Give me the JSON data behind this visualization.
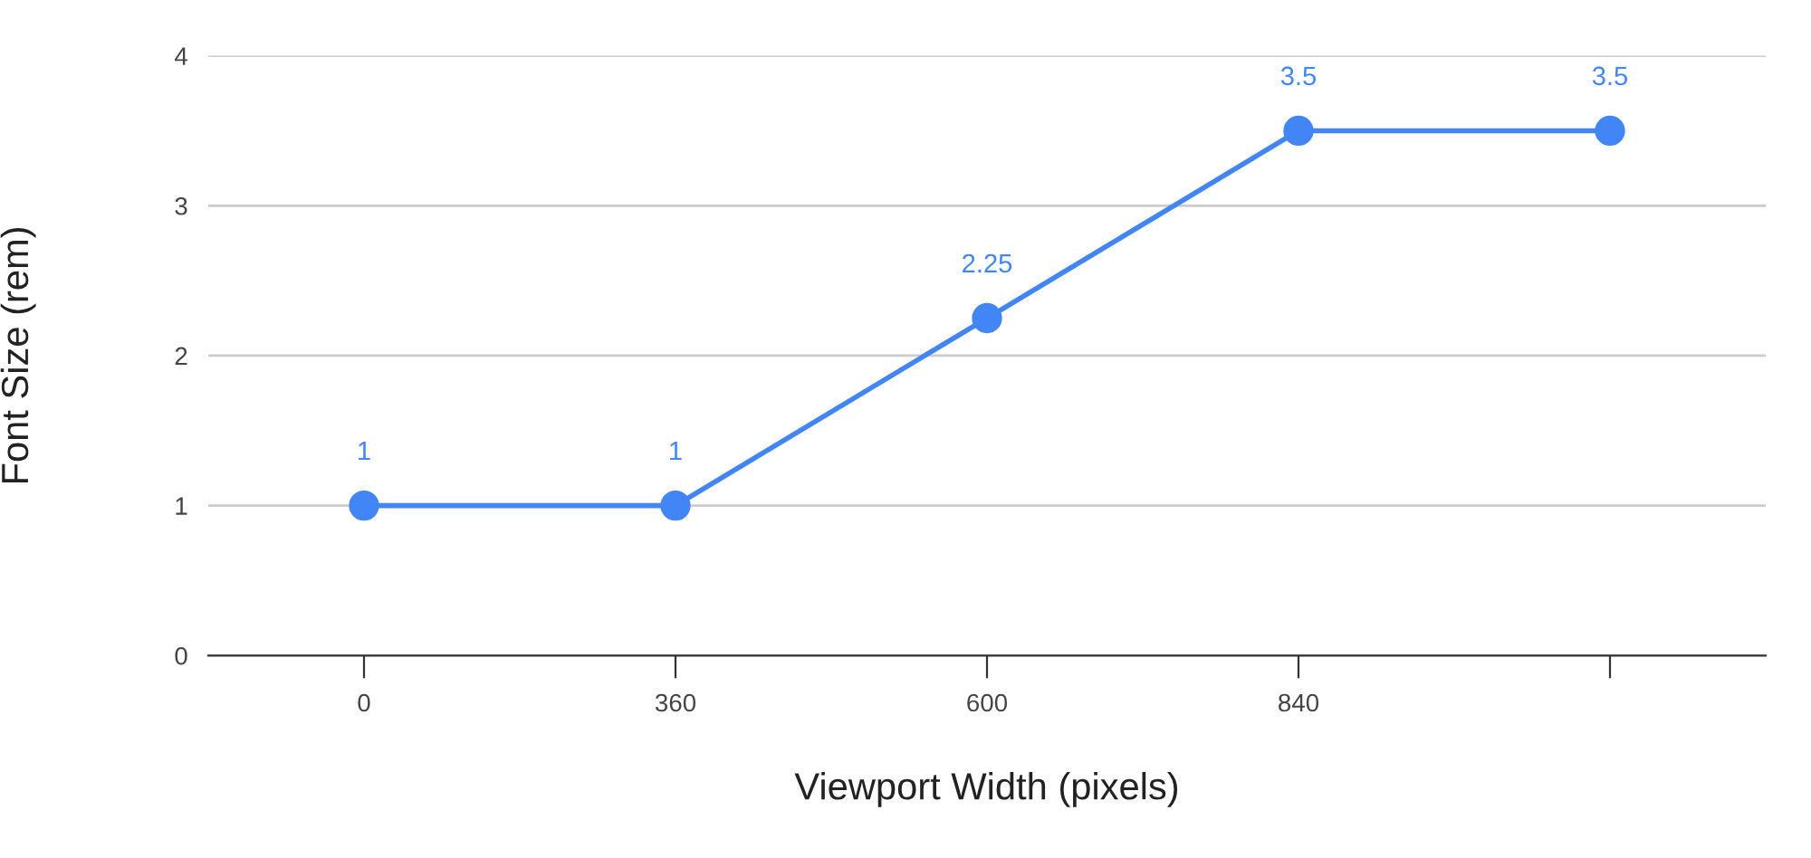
{
  "chart_data": {
    "type": "line",
    "xlabel": "Viewport Width (pixels)",
    "ylabel": "Font Size (rem)",
    "categories": [
      "0",
      "360",
      "600",
      "840",
      null
    ],
    "series": [
      {
        "color": "#4285f4",
        "values": [
          1,
          1,
          2.25,
          3.5,
          3.5
        ]
      }
    ],
    "ylim": [
      0,
      4
    ],
    "yticks": [
      0,
      1,
      2,
      3,
      4
    ],
    "grid": "y",
    "marker": "circle",
    "line_style": "solid",
    "data_labels": true,
    "legend": false
  }
}
